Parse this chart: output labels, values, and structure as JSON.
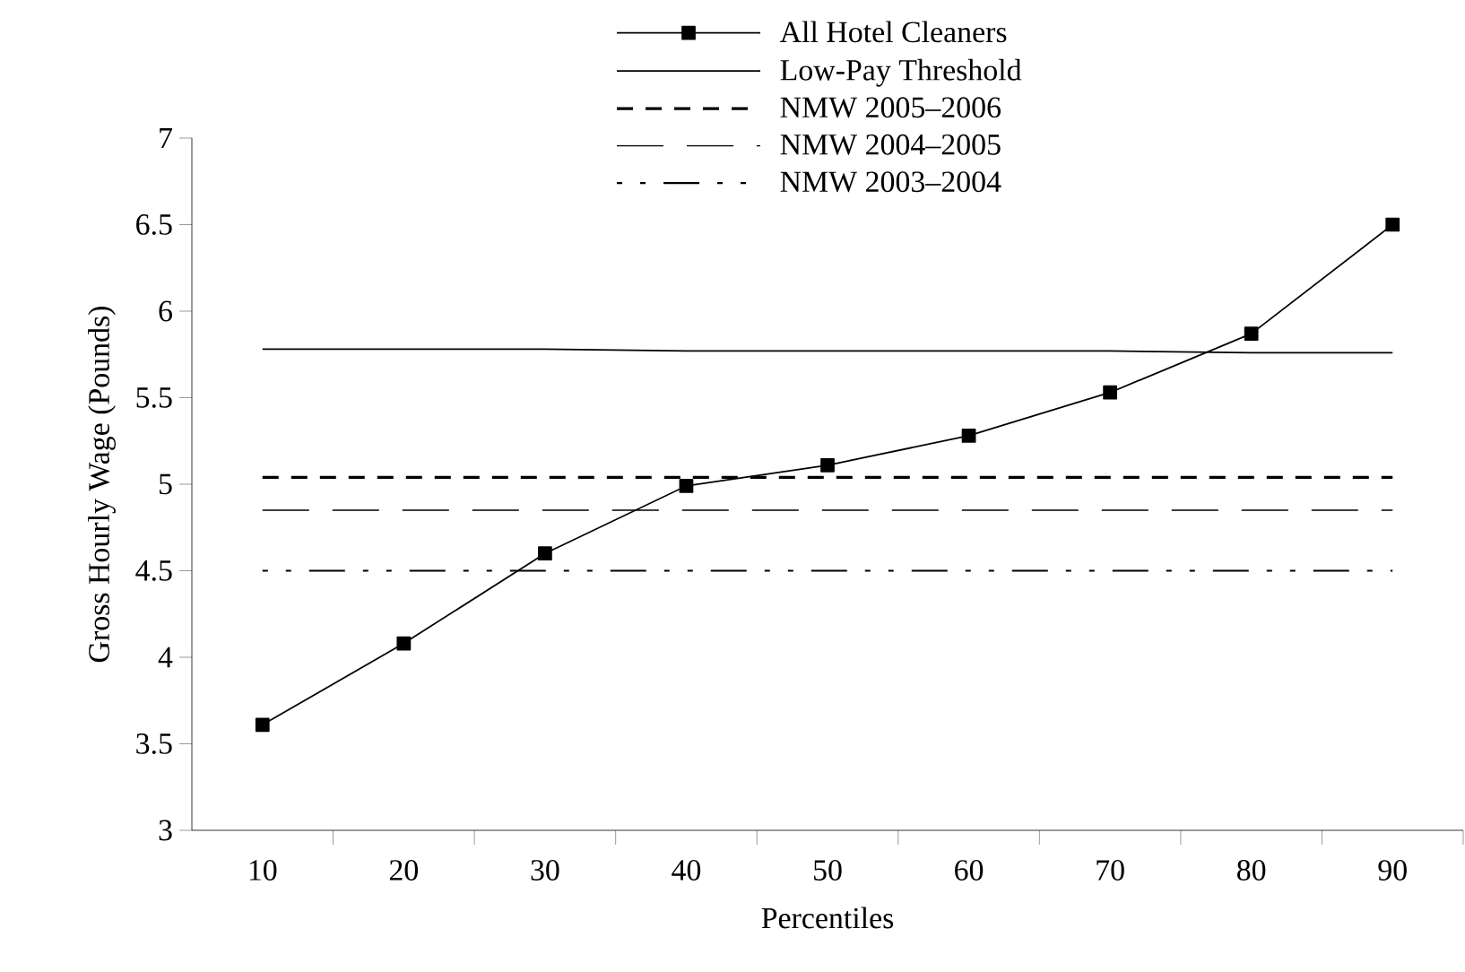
{
  "chart_data": {
    "type": "line",
    "xlabel": "Percentiles",
    "ylabel": "Gross Hourly Wage (Pounds)",
    "categories": [
      "10",
      "20",
      "30",
      "40",
      "50",
      "60",
      "70",
      "80",
      "90"
    ],
    "ylim": [
      3,
      7
    ],
    "yticks": [
      3,
      3.5,
      4,
      4.5,
      5,
      5.5,
      6,
      6.5,
      7
    ],
    "legend": "top",
    "grid": false,
    "series": [
      {
        "name": "All Hotel Cleaners",
        "color": "#000000",
        "marker": "square",
        "line_style": "solid",
        "values": [
          3.61,
          4.08,
          4.6,
          4.99,
          5.11,
          5.28,
          5.53,
          5.87,
          6.5
        ]
      },
      {
        "name": "Low-Pay Threshold",
        "color": "#000000",
        "marker": "none",
        "line_style": "solid",
        "values": [
          5.78,
          5.78,
          5.78,
          5.77,
          5.77,
          5.77,
          5.77,
          5.76,
          5.76
        ]
      },
      {
        "name": "NMW 2005–2006",
        "color": "#000000",
        "marker": "none",
        "line_style": "dashed",
        "values": [
          5.04,
          5.04,
          5.04,
          5.04,
          5.04,
          5.04,
          5.04,
          5.04,
          5.04
        ]
      },
      {
        "name": "NMW 2004–2005",
        "color": "#000000",
        "marker": "none",
        "line_style": "long dashed",
        "values": [
          4.85,
          4.85,
          4.85,
          4.85,
          4.85,
          4.85,
          4.85,
          4.85,
          4.85
        ]
      },
      {
        "name": "NMW 2003–2004",
        "color": "#000000",
        "marker": "none",
        "line_style": "dash dot",
        "values": [
          4.5,
          4.5,
          4.5,
          4.5,
          4.5,
          4.5,
          4.5,
          4.5,
          4.5
        ]
      }
    ]
  }
}
